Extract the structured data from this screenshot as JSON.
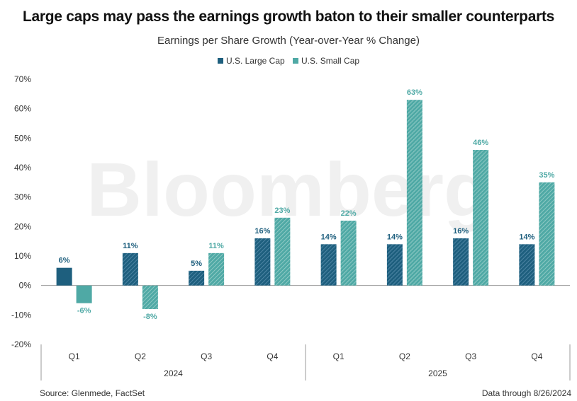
{
  "chart_data": {
    "type": "bar",
    "title": "Large caps may pass the earnings growth baton to their smaller counterparts",
    "subtitle": "Earnings per Share Growth (Year-over-Year % Change)",
    "categories": [
      "Q1",
      "Q2",
      "Q3",
      "Q4",
      "Q1",
      "Q2",
      "Q3",
      "Q4"
    ],
    "groups": [
      {
        "label": "2024",
        "start": 0,
        "end": 3
      },
      {
        "label": "2025",
        "start": 4,
        "end": 7
      }
    ],
    "series": [
      {
        "name": "U.S. Large Cap",
        "values": [
          6,
          11,
          5,
          16,
          14,
          14,
          16,
          14
        ],
        "labels": [
          "6%",
          "11%",
          "5%",
          "16%",
          "14%",
          "14%",
          "16%",
          "14%"
        ]
      },
      {
        "name": "U.S. Small Cap",
        "values": [
          -6,
          -8,
          11,
          23,
          22,
          63,
          46,
          35
        ],
        "labels": [
          "-6%",
          "-8%",
          "11%",
          "23%",
          "22%",
          "63%",
          "46%",
          "35%"
        ]
      }
    ],
    "yticks": [
      "70%",
      "60%",
      "50%",
      "40%",
      "30%",
      "20%",
      "10%",
      "0%",
      "-10%",
      "-20%"
    ],
    "ylim": [
      -20,
      70
    ],
    "ylabel": "",
    "xlabel": "",
    "legend_position": "top-center",
    "grid": false
  },
  "colors": {
    "large_cap": "#1e5f7e",
    "large_cap_light": "#5a8fae",
    "small_cap": "#4fa9a5",
    "small_cap_light": "#9fd2cd",
    "axis": "#999999",
    "watermark": "#eeeeee"
  },
  "watermark": "Bloomberg",
  "footer": {
    "source": "Source: Glenmede, FactSet",
    "note": "Data through 8/26/2024"
  }
}
